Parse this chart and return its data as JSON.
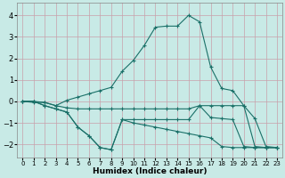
{
  "xlabel": "Humidex (Indice chaleur)",
  "bg_color": "#c8eae6",
  "line_color": "#1a7068",
  "grid_color": "#c8a0aa",
  "xlim": [
    -0.5,
    23.5
  ],
  "ylim": [
    -2.6,
    4.6
  ],
  "xticks": [
    0,
    1,
    2,
    3,
    4,
    5,
    6,
    7,
    8,
    9,
    10,
    11,
    12,
    13,
    14,
    15,
    16,
    17,
    18,
    19,
    20,
    21,
    22,
    23
  ],
  "yticks": [
    -2,
    -1,
    0,
    1,
    2,
    3,
    4
  ],
  "series": [
    [
      0.0,
      0.0,
      -0.05,
      -0.2,
      -0.3,
      -0.35,
      -0.35,
      -0.35,
      -0.35,
      -0.35,
      -0.35,
      -0.35,
      -0.35,
      -0.35,
      -0.35,
      -0.35,
      -0.2,
      -0.2,
      -0.2,
      -0.2,
      -0.2,
      -2.1,
      -2.15,
      -2.15
    ],
    [
      0.0,
      0.0,
      -0.2,
      -0.35,
      -0.5,
      -1.2,
      -1.6,
      -2.15,
      -2.25,
      -0.85,
      -0.85,
      -0.85,
      -0.85,
      -0.85,
      -0.85,
      -0.85,
      -0.2,
      -0.75,
      -0.8,
      -0.85,
      -2.1,
      -2.15,
      -2.15,
      -2.15
    ],
    [
      0.0,
      0.0,
      -0.2,
      -0.35,
      -0.5,
      -1.2,
      -1.6,
      -2.15,
      -2.25,
      -0.85,
      -1.0,
      -1.1,
      -1.2,
      -1.3,
      -1.4,
      -1.5,
      -1.6,
      -1.7,
      -2.1,
      -2.15,
      -2.15,
      -2.15,
      -2.15,
      -2.15
    ],
    [
      0.0,
      -0.05,
      -0.05,
      -0.2,
      0.05,
      0.2,
      0.35,
      0.5,
      0.65,
      1.4,
      1.9,
      2.6,
      3.45,
      3.5,
      3.5,
      4.0,
      3.7,
      1.6,
      0.6,
      0.5,
      -0.2,
      -0.8,
      -2.1,
      -2.15
    ]
  ]
}
